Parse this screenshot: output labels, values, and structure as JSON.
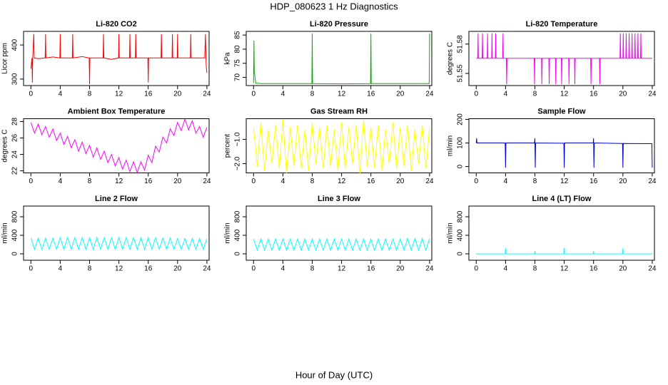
{
  "title": "HDP_080623  1 Hz Diagnostics",
  "xlabel": "Hour of Day (UTC)",
  "chart_data": [
    {
      "type": "line",
      "title": "Li-820 CO2",
      "ylabel": "Licor ppm",
      "color": "#ff0000",
      "x": [
        0,
        0.15,
        0.2,
        0.25,
        0.4,
        0.45,
        1,
        1.95,
        2,
        2.05,
        3,
        3.95,
        4,
        4.05,
        5.65,
        5.7,
        5.75,
        7,
        7.95,
        8,
        8.05,
        9.85,
        9.9,
        9.95,
        11,
        11.95,
        12,
        12.05,
        13.45,
        13.5,
        13.55,
        14.25,
        14.3,
        14.35,
        15.95,
        16,
        16.05,
        17.75,
        17.8,
        17.85,
        19.25,
        19.3,
        19.35,
        19.95,
        20,
        20.05,
        21.75,
        21.8,
        21.85,
        23.7,
        23.8,
        23.9,
        24
      ],
      "values": [
        330,
        362,
        290,
        362,
        432,
        362,
        360,
        362,
        432,
        362,
        365,
        362,
        432,
        362,
        362,
        432,
        362,
        366,
        362,
        285,
        362,
        362,
        432,
        362,
        358,
        362,
        432,
        362,
        362,
        432,
        362,
        362,
        432,
        362,
        362,
        290,
        362,
        362,
        432,
        362,
        362,
        432,
        362,
        362,
        432,
        362,
        362,
        432,
        362,
        362,
        432,
        340,
        318
      ],
      "xlim": [
        -1,
        24.3
      ],
      "xticks": [
        0,
        4,
        8,
        12,
        16,
        20,
        24
      ],
      "ylim": [
        281,
        440
      ],
      "yticks": [
        300,
        400
      ]
    },
    {
      "type": "line",
      "title": "Li-820 Pressure",
      "ylabel": "kPa",
      "color": "#00b000",
      "x": [
        0,
        0.05,
        0.1,
        0.3,
        1,
        7.95,
        8,
        8.05,
        12,
        15.95,
        16,
        16.05,
        20,
        23.95,
        24
      ],
      "values": [
        68,
        83,
        72,
        68,
        67.8,
        67.8,
        85.5,
        67.8,
        67.7,
        67.8,
        85.5,
        67.8,
        67.8,
        67.8,
        85.5
      ],
      "xlim": [
        -1,
        24.3
      ],
      "xticks": [
        0,
        4,
        8,
        12,
        16,
        20,
        24
      ],
      "ylim": [
        67.1,
        86.3
      ],
      "yticks": [
        70,
        75,
        80,
        85
      ]
    },
    {
      "type": "line",
      "title": "Li-820 Temperature",
      "ylabel": "degrees C",
      "color": "#ff00ff",
      "x": [
        0,
        0.2,
        0.25,
        0.3,
        0.8,
        0.85,
        0.9,
        1.5,
        1.55,
        1.6,
        2.1,
        2.15,
        2.2,
        2.6,
        2.65,
        2.7,
        3.6,
        3.65,
        3.7,
        4.1,
        4.15,
        4.2,
        7.9,
        7.95,
        8.0,
        8.9,
        8.95,
        9.0,
        9.9,
        9.95,
        10.0,
        10.8,
        10.85,
        10.9,
        11.6,
        11.65,
        11.7,
        12.6,
        12.65,
        12.7,
        13.4,
        13.45,
        13.5,
        15.6,
        15.65,
        15.7,
        16.8,
        16.85,
        16.9,
        19.6,
        19.65,
        19.7,
        20.0,
        20.05,
        20.1,
        20.4,
        20.45,
        20.5,
        20.8,
        20.85,
        20.9,
        21.2,
        21.25,
        21.3,
        21.6,
        21.65,
        21.7,
        22.0,
        22.05,
        22.1,
        22.4,
        22.45,
        22.5,
        24
      ],
      "values": [
        51.5655,
        51.5655,
        51.591,
        51.5655,
        51.5655,
        51.591,
        51.5655,
        51.5655,
        51.591,
        51.5655,
        51.5655,
        51.591,
        51.5655,
        51.5655,
        51.591,
        51.5655,
        51.5655,
        51.591,
        51.5655,
        51.5655,
        51.539,
        51.5655,
        51.5655,
        51.539,
        51.5655,
        51.5655,
        51.539,
        51.5655,
        51.5655,
        51.539,
        51.5655,
        51.5655,
        51.539,
        51.5655,
        51.5655,
        51.539,
        51.5655,
        51.5655,
        51.539,
        51.5655,
        51.5655,
        51.539,
        51.5655,
        51.5655,
        51.539,
        51.5655,
        51.5655,
        51.539,
        51.5655,
        51.5655,
        51.591,
        51.5655,
        51.5655,
        51.591,
        51.5655,
        51.5655,
        51.591,
        51.5655,
        51.5655,
        51.591,
        51.5655,
        51.5655,
        51.591,
        51.5655,
        51.5655,
        51.591,
        51.5655,
        51.5655,
        51.591,
        51.5655,
        51.5655,
        51.591,
        51.5655,
        51.5655
      ],
      "xlim": [
        -1,
        24.3
      ],
      "xticks": [
        0,
        4,
        8,
        12,
        16,
        20,
        24
      ],
      "ylim": [
        51.5376,
        51.593
      ],
      "yticks": [
        51.55,
        51.58
      ]
    },
    {
      "type": "line",
      "title": "Ambient Box Temperature",
      "ylabel": "degrees C",
      "color": "#ff00ff",
      "x": [
        0,
        0.5,
        1,
        1.5,
        2,
        2.5,
        3,
        3.5,
        4,
        4.5,
        5,
        5.5,
        6,
        6.5,
        7,
        7.5,
        8,
        8.5,
        9,
        9.5,
        10,
        10.5,
        11,
        11.5,
        12,
        12.5,
        13,
        13.5,
        14,
        14.5,
        15,
        15.5,
        16,
        16.5,
        17,
        17.5,
        18,
        18.5,
        19,
        19.5,
        20,
        20.5,
        21,
        21.5,
        22,
        22.5,
        23,
        23.5,
        24
      ],
      "values": [
        27.9,
        26.6,
        27.7,
        26.4,
        27.4,
        26.1,
        27.1,
        25.7,
        26.6,
        25.2,
        26.2,
        24.8,
        25.8,
        24.4,
        25.5,
        24.1,
        25.1,
        23.7,
        24.8,
        23.4,
        24.4,
        23.0,
        24.0,
        22.6,
        23.6,
        22.2,
        23.3,
        21.9,
        23.1,
        21.8,
        23.1,
        22.1,
        23.9,
        23.0,
        25.0,
        24.3,
        26.1,
        25.4,
        27.1,
        26.3,
        27.9,
        26.9,
        28.3,
        27.0,
        28.1,
        26.6,
        27.4,
        26.1,
        27.3
      ],
      "xlim": [
        -1,
        24.3
      ],
      "xticks": [
        0,
        4,
        8,
        12,
        16,
        20,
        24
      ],
      "ylim": [
        21.75,
        28.35
      ],
      "yticks": [
        22,
        24,
        26,
        28
      ]
    },
    {
      "type": "line",
      "title": "Gas Stream RH",
      "ylabel": "percent",
      "color": "#ffff00",
      "x": [
        0,
        0.5,
        1,
        1.5,
        2,
        2.5,
        3,
        3.5,
        4,
        4.5,
        5,
        5.5,
        6,
        6.5,
        7,
        7.5,
        8,
        8.5,
        9,
        9.5,
        10,
        10.5,
        11,
        11.5,
        12,
        12.5,
        13,
        13.5,
        14,
        14.5,
        15,
        15.5,
        16,
        16.5,
        17,
        17.5,
        18,
        18.5,
        19,
        19.5,
        20,
        20.5,
        21,
        21.5,
        22,
        22.5,
        23,
        23.5,
        24
      ],
      "values": [
        -0.5,
        -2.1,
        -0.3,
        -2.3,
        -0.6,
        -2.0,
        -0.4,
        -2.2,
        -0.2,
        -2.4,
        -0.5,
        -2.1,
        -0.4,
        -2.2,
        -0.6,
        -2.3,
        -0.3,
        -2.0,
        -0.5,
        -2.2,
        -0.4,
        -2.1,
        -0.6,
        -2.3,
        -0.3,
        -2.2,
        -0.5,
        -2.0,
        -0.4,
        -2.4,
        -0.2,
        -2.1,
        -0.5,
        -2.2,
        -0.4,
        -2.3,
        -0.6,
        -2.0,
        -0.3,
        -2.2,
        -0.5,
        -2.1,
        -0.4,
        -2.3,
        -0.6,
        -2.0,
        -0.4,
        -2.2,
        -0.5
      ],
      "xlim": [
        -1,
        24.3
      ],
      "xticks": [
        0,
        4,
        8,
        12,
        16,
        20,
        24
      ],
      "ylim": [
        -2.38,
        -0.15
      ],
      "yticks": [
        {
          "value": -2,
          "label": "−2.0"
        },
        {
          "value": -1,
          "label": "−1.0"
        }
      ]
    },
    {
      "type": "line",
      "title": "Sample Flow",
      "ylabel": "ml/min",
      "color": "#0000cc",
      "x": [
        0,
        0.05,
        0.1,
        3.95,
        4,
        4.05,
        7.95,
        8,
        8.05,
        8.1,
        11.95,
        12,
        12.05,
        15.95,
        16,
        16.05,
        16.1,
        19.95,
        20,
        20.05,
        23.9,
        23.95,
        24
      ],
      "values": [
        100,
        120,
        100,
        100,
        -5,
        100,
        100,
        120,
        -5,
        100,
        99,
        -5,
        100,
        100,
        120,
        -5,
        100,
        98,
        -5,
        98,
        97,
        97,
        -5
      ],
      "xlim": [
        -1,
        24.3
      ],
      "xticks": [
        0,
        4,
        8,
        12,
        16,
        20,
        24
      ],
      "ylim": [
        -27,
        203
      ],
      "yticks": [
        0,
        100,
        200
      ]
    },
    {
      "type": "line",
      "title": "Line 2 Flow",
      "ylabel": "ml/min",
      "color": "#00ffff",
      "x": [
        0,
        0.5,
        1,
        1.5,
        2,
        2.5,
        3,
        3.5,
        4,
        4.5,
        5,
        5.5,
        6,
        6.5,
        7,
        7.5,
        8,
        8.5,
        9,
        9.5,
        10,
        10.5,
        11,
        11.5,
        12,
        12.5,
        13,
        13.5,
        14,
        14.5,
        15,
        15.5,
        16,
        16.5,
        17,
        17.5,
        18,
        18.5,
        19,
        19.5,
        20,
        20.5,
        21,
        21.5,
        22,
        22.5,
        23,
        23.5,
        24
      ],
      "values": [
        340,
        100,
        340,
        100,
        340,
        100,
        340,
        100,
        350,
        100,
        350,
        100,
        350,
        100,
        350,
        100,
        350,
        100,
        350,
        100,
        350,
        100,
        350,
        100,
        350,
        100,
        350,
        100,
        350,
        100,
        350,
        100,
        350,
        100,
        350,
        100,
        340,
        100,
        340,
        100,
        330,
        100,
        330,
        100,
        330,
        100,
        330,
        100,
        330
      ],
      "xlim": [
        -1,
        24.3
      ],
      "xticks": [
        0,
        4,
        8,
        12,
        16,
        20,
        24
      ],
      "ylim": [
        -138,
        1031
      ],
      "yticks": [
        0,
        400,
        800
      ]
    },
    {
      "type": "line",
      "title": "Line 3 Flow",
      "ylabel": "ml/min",
      "color": "#00ffff",
      "x": [
        0,
        0.5,
        1,
        1.5,
        2,
        2.5,
        3,
        3.5,
        4,
        4.5,
        5,
        5.5,
        6,
        6.5,
        7,
        7.5,
        8,
        8.5,
        9,
        9.5,
        10,
        10.5,
        11,
        11.5,
        12,
        12.5,
        13,
        13.5,
        14,
        14.5,
        15,
        15.5,
        16,
        16.5,
        17,
        17.5,
        18,
        18.5,
        19,
        19.5,
        20,
        20.5,
        21,
        21.5,
        22,
        22.5,
        23,
        23.5,
        24
      ],
      "values": [
        320,
        80,
        320,
        80,
        320,
        80,
        320,
        80,
        320,
        80,
        320,
        80,
        320,
        80,
        320,
        80,
        320,
        80,
        320,
        80,
        320,
        80,
        320,
        80,
        320,
        80,
        320,
        80,
        320,
        80,
        320,
        80,
        320,
        80,
        320,
        80,
        320,
        80,
        320,
        80,
        320,
        80,
        330,
        80,
        330,
        80,
        330,
        80,
        330
      ],
      "xlim": [
        -1,
        24.3
      ],
      "xticks": [
        0,
        4,
        8,
        12,
        16,
        20,
        24
      ],
      "ylim": [
        -138,
        1031
      ],
      "yticks": [
        0,
        400,
        800
      ]
    },
    {
      "type": "line",
      "title": "Line 4 (LT) Flow",
      "ylabel": "ml/min",
      "color": "#00ffff",
      "x": [
        0,
        3.95,
        4,
        4.05,
        7.95,
        8,
        8.05,
        11.95,
        12,
        12.05,
        15.95,
        16,
        16.05,
        19.95,
        20,
        20.05,
        24
      ],
      "values": [
        0,
        0,
        120,
        0,
        0,
        60,
        0,
        0,
        120,
        0,
        0,
        60,
        0,
        0,
        120,
        0,
        0
      ],
      "xlim": [
        -1,
        24.3
      ],
      "xticks": [
        0,
        4,
        8,
        12,
        16,
        20,
        24
      ],
      "ylim": [
        -138,
        1031
      ],
      "yticks": [
        0,
        400,
        800
      ]
    }
  ]
}
